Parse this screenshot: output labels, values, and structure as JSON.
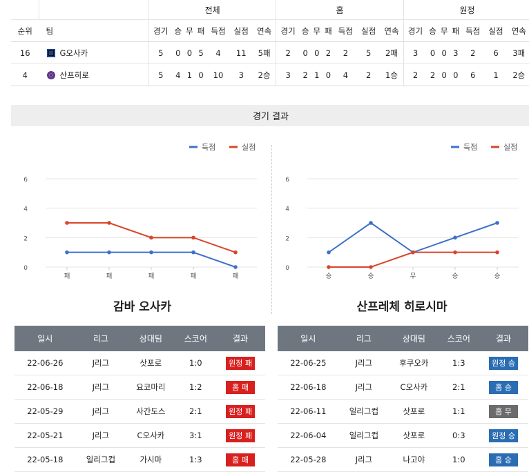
{
  "standings": {
    "groups": [
      "전체",
      "홈",
      "원정"
    ],
    "headers": [
      "순위",
      "팀",
      "경기",
      "승",
      "무",
      "패",
      "득점",
      "실점",
      "연속",
      "경기",
      "승",
      "무",
      "패",
      "득점",
      "실점",
      "연속",
      "경기",
      "승",
      "무",
      "패",
      "득점",
      "실점",
      "연속"
    ],
    "rows": [
      {
        "rank": "16",
        "team": "G오사카",
        "logo": "gamba-logo",
        "cells": [
          "5",
          "0",
          "0",
          "5",
          "4",
          "11",
          "5패",
          "2",
          "0",
          "0",
          "2",
          "2",
          "5",
          "2패",
          "3",
          "0",
          "0",
          "3",
          "2",
          "6",
          "3패"
        ]
      },
      {
        "rank": "4",
        "team": "산프히로",
        "logo": "sanfrecce-logo",
        "cells": [
          "5",
          "4",
          "1",
          "0",
          "10",
          "3",
          "2승",
          "3",
          "2",
          "1",
          "0",
          "4",
          "2",
          "1승",
          "2",
          "2",
          "0",
          "0",
          "6",
          "1",
          "2승"
        ]
      }
    ]
  },
  "section_title": "경기 결과",
  "chart_data": [
    {
      "type": "line",
      "categories": [
        "패",
        "패",
        "패",
        "패",
        "패"
      ],
      "series": [
        {
          "name": "득점",
          "values": [
            1,
            1,
            1,
            1,
            0
          ],
          "color": "#3e6fc9"
        },
        {
          "name": "실점",
          "values": [
            3,
            3,
            2,
            2,
            1
          ],
          "color": "#d9442a"
        }
      ],
      "yticks": [
        0,
        2,
        4,
        6
      ],
      "ylim": [
        0,
        6
      ],
      "legend": "top-right"
    },
    {
      "type": "line",
      "categories": [
        "승",
        "승",
        "무",
        "승",
        "승"
      ],
      "series": [
        {
          "name": "득점",
          "values": [
            1,
            3,
            1,
            2,
            3
          ],
          "color": "#3e6fc9"
        },
        {
          "name": "실점",
          "values": [
            0,
            0,
            1,
            1,
            1
          ],
          "color": "#d9442a"
        }
      ],
      "yticks": [
        0,
        2,
        4,
        6
      ],
      "ylim": [
        0,
        6
      ],
      "legend": "top-right"
    }
  ],
  "left_team": {
    "name": "감바 오사카",
    "headers": [
      "일시",
      "리그",
      "상대팀",
      "스코어",
      "결과"
    ],
    "matches": [
      {
        "date": "22-06-26",
        "league": "J리그",
        "opponent": "삿포로",
        "score": "1:0",
        "result": "원정 패",
        "color": "red"
      },
      {
        "date": "22-06-18",
        "league": "J리그",
        "opponent": "요코마리",
        "score": "1:2",
        "result": "홈 패",
        "color": "red"
      },
      {
        "date": "22-05-29",
        "league": "J리그",
        "opponent": "사간도스",
        "score": "2:1",
        "result": "원정 패",
        "color": "red"
      },
      {
        "date": "22-05-21",
        "league": "J리그",
        "opponent": "C오사카",
        "score": "3:1",
        "result": "원정 패",
        "color": "red"
      },
      {
        "date": "22-05-18",
        "league": "일리그컵",
        "opponent": "가시마",
        "score": "1:3",
        "result": "홈 패",
        "color": "red"
      }
    ]
  },
  "right_team": {
    "name": "산프레체 히로시마",
    "headers": [
      "일시",
      "리그",
      "상대팀",
      "스코어",
      "결과"
    ],
    "matches": [
      {
        "date": "22-06-25",
        "league": "J리그",
        "opponent": "후쿠오카",
        "score": "1:3",
        "result": "원정 승",
        "color": "blue"
      },
      {
        "date": "22-06-18",
        "league": "J리그",
        "opponent": "C오사카",
        "score": "2:1",
        "result": "홈 승",
        "color": "blue"
      },
      {
        "date": "22-06-11",
        "league": "일리그컵",
        "opponent": "삿포로",
        "score": "1:1",
        "result": "홈 무",
        "color": "gray"
      },
      {
        "date": "22-06-04",
        "league": "일리그컵",
        "opponent": "삿포로",
        "score": "0:3",
        "result": "원정 승",
        "color": "blue"
      },
      {
        "date": "22-05-28",
        "league": "J리그",
        "opponent": "나고야",
        "score": "1:0",
        "result": "홈 승",
        "color": "blue"
      }
    ]
  }
}
